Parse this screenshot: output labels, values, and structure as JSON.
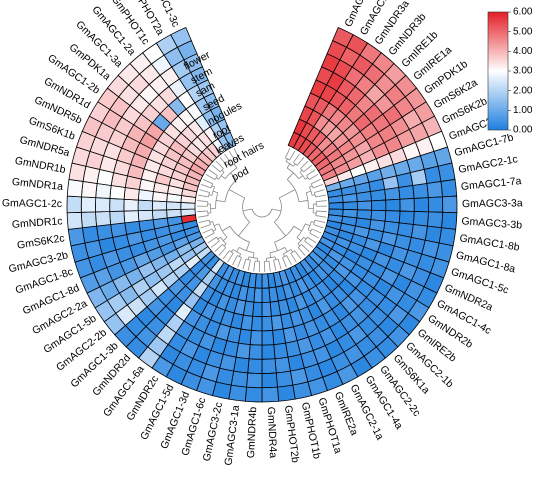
{
  "chart_data": {
    "type": "heatmap",
    "layout": "circular",
    "colorbar": {
      "min": 0.0,
      "max": 6.0,
      "ticks": [
        "0.00",
        "1.00",
        "2.00",
        "3.00",
        "4.00",
        "5.00",
        "6.00"
      ],
      "colors": [
        "#1e7fe0",
        "#ffffff",
        "#e41e26"
      ]
    },
    "tissues": [
      "flower",
      "stem",
      "sam",
      "seed",
      "nodules",
      "root",
      "leaves",
      "root hairs",
      "pod"
    ],
    "genes": [
      "GmAGC1-1a",
      "GmAGC1-1b",
      "GmNDR3a",
      "GmNDR3b",
      "GmIRE1b",
      "GmIRE1a",
      "GmPDK1b",
      "GmS6K2a",
      "GmS6K2b",
      "GmAGC3-2a",
      "GmAGC1-7b",
      "GmAGC2-1c",
      "GmAGC1-7a",
      "GmAGC3-3a",
      "GmAGC3-3b",
      "GmAGC1-8b",
      "GmAGC1-8a",
      "GmAGC1-5c",
      "GmNDR2a",
      "GmAGC1-4c",
      "GmNDR2b",
      "GmIRE2b",
      "GmAGC2-1b",
      "GmS6K1a",
      "GmAGC2-2c",
      "GmAGC1-4a",
      "GmAGC2-1a",
      "GmIRE2a",
      "GmPHOT1a",
      "GmPHOT1b",
      "GmPHOT2b",
      "GmNDR4a",
      "GmNDR4b",
      "GmAGC3-1a",
      "GmAGC3-2c",
      "GmAGC1-6c",
      "GmAGC1-3d",
      "GmAGC1-5d",
      "GmNDR2c",
      "GmAGC1-6a",
      "GmNDR2d",
      "GmAGC1-3b",
      "GmAGC2-2b",
      "GmAGC1-5b",
      "GmAGC2-2a",
      "GmAGC1-8d",
      "GmAGC1-8c",
      "GmAGC3-2b",
      "GmS6K2c",
      "GmNDR1c",
      "GmAGC1-2c",
      "GmNDR1a",
      "GmNDR1b",
      "GmNDR5a",
      "GmS6K1b",
      "GmNDR5b",
      "GmNDR1d",
      "GmAGC1-2b",
      "GmPDK1a",
      "GmAGC1-3a",
      "GmAGC1-2a",
      "GmPHOT1c",
      "GmPHOT2a",
      "GmAGC1-3c"
    ],
    "values": [
      [
        5.6,
        5.7,
        5.5,
        5.3,
        5.6,
        5.4,
        5.6,
        5.4,
        5.2
      ],
      [
        5.5,
        5.4,
        5.3,
        5.2,
        5.5,
        5.6,
        5.4,
        5.1,
        5.3
      ],
      [
        5.4,
        5.2,
        4.5,
        4.8,
        5.3,
        5.2,
        4.9,
        5.2,
        4.8
      ],
      [
        5.2,
        5.0,
        4.3,
        4.6,
        5.1,
        5.0,
        4.7,
        4.9,
        4.6
      ],
      [
        5.0,
        4.5,
        4.2,
        4.6,
        4.8,
        4.6,
        4.2,
        4.5,
        4.3
      ],
      [
        5.1,
        4.7,
        4.4,
        4.4,
        5.0,
        4.9,
        4.4,
        4.7,
        4.5
      ],
      [
        5.0,
        4.8,
        4.6,
        4.5,
        4.7,
        4.8,
        4.9,
        4.6,
        4.4
      ],
      [
        4.8,
        4.6,
        4.4,
        4.2,
        4.6,
        4.7,
        4.5,
        4.1,
        4.3
      ],
      [
        4.7,
        4.5,
        4.3,
        4.0,
        4.5,
        4.6,
        4.3,
        4.2,
        4.0
      ],
      [
        3.6,
        3.3,
        3.0,
        3.2,
        3.4,
        3.5,
        3.1,
        3.2,
        3.0
      ],
      [
        1.2,
        1.0,
        0.9,
        0.8,
        1.1,
        1.0,
        1.0,
        0.8,
        0.9
      ],
      [
        0.3,
        0.4,
        0.5,
        0.3,
        1.6,
        0.4,
        1.8,
        0.3,
        0.4
      ],
      [
        0.4,
        0.6,
        0.4,
        0.3,
        0.5,
        0.3,
        0.4,
        0.6,
        0.3
      ],
      [
        0.2,
        0.3,
        0.5,
        0.2,
        0.2,
        0.5,
        0.2,
        0.3,
        0.6
      ],
      [
        0.3,
        0.5,
        0.3,
        0.4,
        0.3,
        0.2,
        0.3,
        0.4,
        0.2
      ],
      [
        0.5,
        0.3,
        0.2,
        0.5,
        0.4,
        0.3,
        0.5,
        0.2,
        0.3
      ],
      [
        0.2,
        0.4,
        0.6,
        0.3,
        0.6,
        0.4,
        0.3,
        0.5,
        0.4
      ],
      [
        0.4,
        0.2,
        0.3,
        0.6,
        0.2,
        0.5,
        0.4,
        0.3,
        0.5
      ],
      [
        0.3,
        0.5,
        0.4,
        0.2,
        0.5,
        0.3,
        0.6,
        0.4,
        0.2
      ],
      [
        0.5,
        0.3,
        0.2,
        0.4,
        0.3,
        0.6,
        0.2,
        0.5,
        0.3
      ],
      [
        0.2,
        0.6,
        0.5,
        0.3,
        0.4,
        0.2,
        0.5,
        0.3,
        0.6
      ],
      [
        0.4,
        0.3,
        0.6,
        0.5,
        0.3,
        0.4,
        0.3,
        0.6,
        0.2
      ],
      [
        0.6,
        0.4,
        0.3,
        0.2,
        0.5,
        0.3,
        0.4,
        0.2,
        0.5
      ],
      [
        0.3,
        0.5,
        0.2,
        0.4,
        0.6,
        0.5,
        0.3,
        0.4,
        0.3
      ],
      [
        0.5,
        0.2,
        0.4,
        0.3,
        0.2,
        0.4,
        0.6,
        0.3,
        0.4
      ],
      [
        0.2,
        0.4,
        0.5,
        0.6,
        0.4,
        0.2,
        0.3,
        0.5,
        0.2
      ],
      [
        0.4,
        0.6,
        0.3,
        0.2,
        0.3,
        0.5,
        0.2,
        0.4,
        0.6
      ],
      [
        0.3,
        0.3,
        0.6,
        0.4,
        0.5,
        0.3,
        0.5,
        0.2,
        0.3
      ],
      [
        0.6,
        0.5,
        0.2,
        0.5,
        0.3,
        0.6,
        0.4,
        0.3,
        0.5
      ],
      [
        0.4,
        0.2,
        0.4,
        0.3,
        0.6,
        0.4,
        0.2,
        0.6,
        0.4
      ],
      [
        0.2,
        0.4,
        0.3,
        0.6,
        0.2,
        0.3,
        0.5,
        0.4,
        0.2
      ],
      [
        0.5,
        0.3,
        0.5,
        0.4,
        0.3,
        0.2,
        0.4,
        0.2,
        0.5
      ],
      [
        0.3,
        0.6,
        0.2,
        0.3,
        0.5,
        0.4,
        0.3,
        0.5,
        0.3
      ],
      [
        0.4,
        0.3,
        0.4,
        0.5,
        0.2,
        0.6,
        0.2,
        0.4,
        0.4
      ],
      [
        0.2,
        0.5,
        0.6,
        0.2,
        0.4,
        0.3,
        0.5,
        0.3,
        0.2
      ],
      [
        0.5,
        0.2,
        0.3,
        0.4,
        0.6,
        0.2,
        0.4,
        0.6,
        0.5
      ],
      [
        0.3,
        0.4,
        0.5,
        0.3,
        0.3,
        0.5,
        0.2,
        0.3,
        0.4
      ],
      [
        0.6,
        0.3,
        0.2,
        0.5,
        0.4,
        0.3,
        0.6,
        0.4,
        0.2
      ],
      [
        0.4,
        0.5,
        0.4,
        0.2,
        0.5,
        0.4,
        0.3,
        0.2,
        0.6
      ],
      [
        2.4,
        1.8,
        2.2,
        1.6,
        2.6,
        1.9,
        2.1,
        1.7,
        2.0
      ],
      [
        0.3,
        0.6,
        0.5,
        0.4,
        0.2,
        0.3,
        0.4,
        0.5,
        0.3
      ],
      [
        0.5,
        0.3,
        0.3,
        0.6,
        0.4,
        0.5,
        0.2,
        0.3,
        0.4
      ],
      [
        2.2,
        2.6,
        1.9,
        2.0,
        2.4,
        1.8,
        2.3,
        2.5,
        1.6
      ],
      [
        1.8,
        1.6,
        2.1,
        1.7,
        1.5,
        1.9,
        1.4,
        1.8,
        1.6
      ],
      [
        1.2,
        1.5,
        1.1,
        1.3,
        1.6,
        1.2,
        1.4,
        1.0,
        1.3
      ],
      [
        0.6,
        0.8,
        0.5,
        0.7,
        0.9,
        0.6,
        0.5,
        0.8,
        0.7
      ],
      [
        0.4,
        0.3,
        0.6,
        0.5,
        0.3,
        0.4,
        0.6,
        0.3,
        0.5
      ],
      [
        0.3,
        0.5,
        0.4,
        0.3,
        0.6,
        0.3,
        0.2,
        0.5,
        0.4
      ],
      [
        5.8,
        0.5,
        0.6,
        0.4,
        0.3,
        0.5,
        0.4,
        0.3,
        0.6
      ],
      [
        2.5,
        2.3,
        2.2,
        2.4,
        2.6,
        2.1,
        2.3,
        2.2,
        2.4
      ],
      [
        2.6,
        2.4,
        2.5,
        2.2,
        2.7,
        2.3,
        2.5,
        2.6,
        2.2
      ],
      [
        3.2,
        2.9,
        3.1,
        2.8,
        3.3,
        3.0,
        2.8,
        3.1,
        2.9
      ],
      [
        3.5,
        3.2,
        3.3,
        3.1,
        3.6,
        3.4,
        3.0,
        3.2,
        3.4
      ],
      [
        3.8,
        3.4,
        3.7,
        3.2,
        3.9,
        3.5,
        3.3,
        3.6,
        3.5
      ],
      [
        3.9,
        3.6,
        3.5,
        3.3,
        4.0,
        3.7,
        3.4,
        3.5,
        3.6
      ],
      [
        4.0,
        3.8,
        3.6,
        3.4,
        4.1,
        3.9,
        3.6,
        3.7,
        3.8
      ],
      [
        4.2,
        3.9,
        3.8,
        3.5,
        4.3,
        4.0,
        3.7,
        3.9,
        3.6
      ],
      [
        4.1,
        3.7,
        3.9,
        3.6,
        4.2,
        3.8,
        3.5,
        3.8,
        3.7
      ],
      [
        3.9,
        3.5,
        3.6,
        3.4,
        1.0,
        3.6,
        3.3,
        3.4,
        3.5
      ],
      [
        3.7,
        3.3,
        3.5,
        3.2,
        3.8,
        3.4,
        3.1,
        3.5,
        3.3
      ],
      [
        3.6,
        3.4,
        3.3,
        3.1,
        1.4,
        3.5,
        3.2,
        3.3,
        3.2
      ],
      [
        2.8,
        3.1,
        2.6,
        2.9,
        3.0,
        2.7,
        3.2,
        2.8,
        3.0
      ],
      [
        1.6,
        1.9,
        1.5,
        1.7,
        2.0,
        1.6,
        1.8,
        1.5,
        1.9
      ],
      [
        1.4,
        1.6,
        1.2,
        1.5,
        1.7,
        1.3,
        1.5,
        1.2,
        1.6
      ]
    ]
  }
}
